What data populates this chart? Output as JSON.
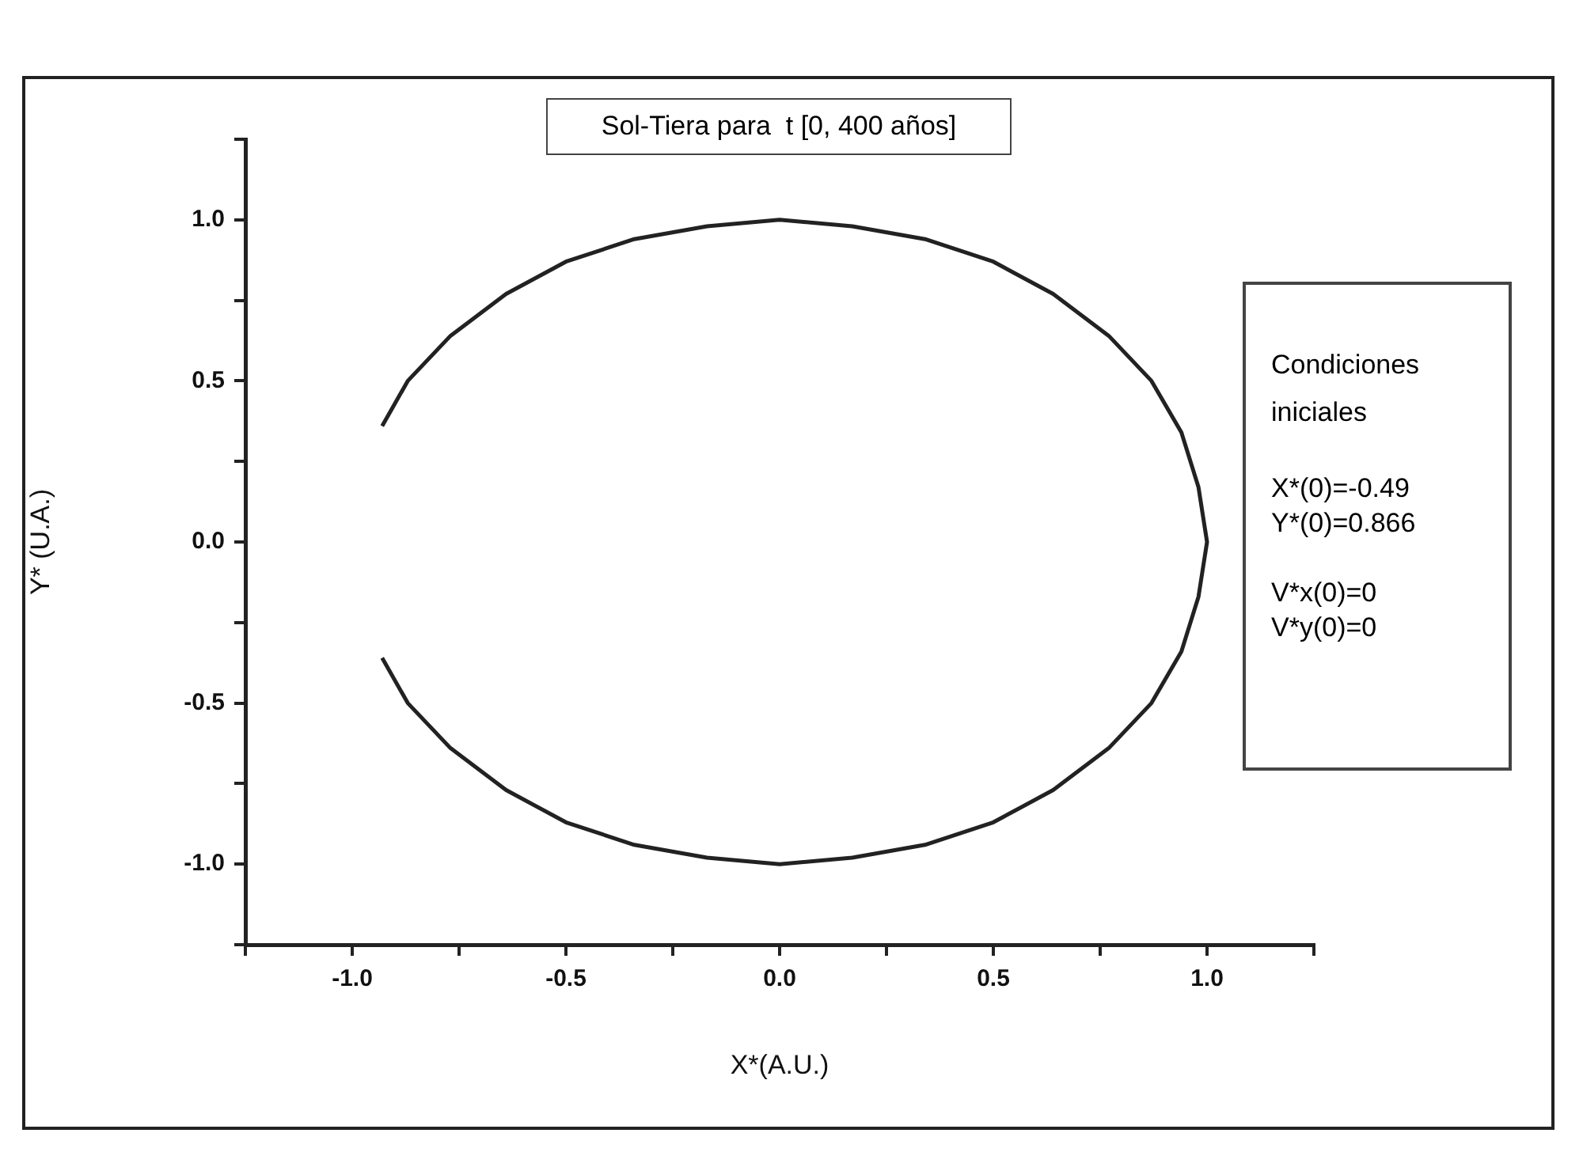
{
  "chart_data": {
    "type": "line",
    "title": "Sol-Tiera para  t [0, 400 años]",
    "xlabel": "X*(A.U.)",
    "ylabel": "Y* (U.A.)",
    "series": [
      {
        "color": "#222222",
        "x": [
          -0.93,
          -0.87,
          -0.77,
          -0.64,
          -0.5,
          -0.34,
          -0.17,
          0,
          0.17,
          0.34,
          0.5,
          0.64,
          0.77,
          0.87,
          0.94,
          0.98,
          1,
          0.98,
          0.94,
          0.87,
          0.77,
          0.64,
          0.5,
          0.34,
          0.17,
          0,
          -0.17,
          -0.34,
          -0.5,
          -0.64,
          -0.77,
          -0.87,
          -0.93
        ],
        "values": [
          0.36,
          0.5,
          0.64,
          0.77,
          0.87,
          0.94,
          0.98,
          1,
          0.98,
          0.94,
          0.87,
          0.77,
          0.64,
          0.5,
          0.34,
          0.17,
          0,
          -0.17,
          -0.34,
          -0.5,
          -0.64,
          -0.77,
          -0.87,
          -0.94,
          -0.98,
          -1,
          -0.98,
          -0.94,
          -0.87,
          -0.77,
          -0.64,
          -0.5,
          -0.36
        ]
      }
    ],
    "xlim": [
      -1.25,
      1.25
    ],
    "ylim": [
      -1.25,
      1.25
    ],
    "xticks": [
      {
        "value": -1.25,
        "label": null
      },
      {
        "value": -1,
        "label": "-1.0"
      },
      {
        "value": -0.75,
        "label": null
      },
      {
        "value": -0.5,
        "label": "-0.5"
      },
      {
        "value": -0.25,
        "label": null
      },
      {
        "value": 0,
        "label": "0.0"
      },
      {
        "value": 0.25,
        "label": null
      },
      {
        "value": 0.5,
        "label": "0.5"
      },
      {
        "value": 0.75,
        "label": null
      },
      {
        "value": 1,
        "label": "1.0"
      },
      {
        "value": 1.25,
        "label": null
      }
    ],
    "yticks": [
      {
        "value": -1.25,
        "label": null
      },
      {
        "value": -1,
        "label": "-1.0"
      },
      {
        "value": -0.75,
        "label": null
      },
      {
        "value": -0.5,
        "label": "-0.5"
      },
      {
        "value": -0.25,
        "label": null
      },
      {
        "value": 0,
        "label": "0.0"
      },
      {
        "value": 0.25,
        "label": null
      },
      {
        "value": 0.5,
        "label": "0.5"
      },
      {
        "value": 0.75,
        "label": null
      },
      {
        "value": 1,
        "label": "1.0"
      },
      {
        "value": 1.25,
        "label": null
      }
    ],
    "grid": false,
    "legend": false,
    "marker": "none",
    "line_style": "solid",
    "annotations": [
      "Condiciones iniciales",
      "X*(0)=-0.49",
      "Y*(0)=0.866",
      "V*x(0)=0",
      "V*y(0)=0"
    ]
  }
}
